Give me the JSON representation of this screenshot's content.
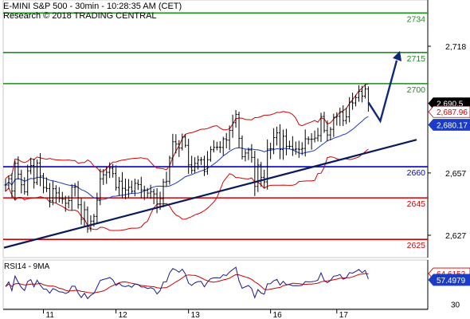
{
  "header": {
    "title": "E-MINI S&P 500 - 30min - 10:28:35 AM (CET)",
    "subtitle": "Research © 2018 TRADING CENTRAL"
  },
  "colors": {
    "candle": "#000000",
    "bollinger": "#d40000",
    "moving_average": "#1a3cc8",
    "trendline": "#0a1a5c",
    "resistance": "#1a8f1a",
    "pivot": "#0000cc",
    "support": "#d40000",
    "projection": "#0d2a7a",
    "rsi_line": "#1a1a8c",
    "rsi_signal": "#cc0000",
    "price_tag_bg": "#000000",
    "ma_tag_bg": "#1a3cc8",
    "bb_tag_bg": "#ffffff"
  },
  "chart_data": [
    {
      "type": "line",
      "title": "E-MINI S&P 500 - 30min",
      "x_tick_labels": [
        "11",
        "12",
        "13",
        "16",
        "17"
      ],
      "y_tick_labels": [
        "2,718",
        "2,657",
        "2,627"
      ],
      "ylim": [
        2609,
        2740
      ],
      "levels": [
        {
          "label": "2734",
          "value": 2734,
          "kind": "resistance"
        },
        {
          "label": "2715",
          "value": 2715,
          "kind": "resistance"
        },
        {
          "label": "2700",
          "value": 2700,
          "kind": "resistance"
        },
        {
          "label": "2660",
          "value": 2660,
          "kind": "pivot"
        },
        {
          "label": "2645",
          "value": 2645,
          "kind": "support"
        },
        {
          "label": "2625",
          "value": 2625,
          "kind": "support"
        }
      ],
      "price_tags": [
        {
          "label": "2,690.5",
          "value": 2690.5,
          "kind": "price"
        },
        {
          "label": "2,687.96",
          "value": 2687.96,
          "kind": "bollinger"
        },
        {
          "label": "2,680.17",
          "value": 2680.17,
          "kind": "moving_average"
        }
      ],
      "trendline": {
        "from": 2621,
        "to": 2673
      },
      "projection": [
        2691,
        2682,
        2715
      ],
      "close": [
        2651.2,
        2654.2,
        2648.3,
        2661.6,
        2656.4,
        2651.3,
        2647.9,
        2658.0,
        2660.6,
        2652.4,
        2661.8,
        2655.5,
        2650.0,
        2649.5,
        2643.6,
        2649.4,
        2647.4,
        2644.7,
        2644.4,
        2642.4,
        2643.7,
        2650.2,
        2650.2,
        2641.7,
        2634.7,
        2639.3,
        2630.1,
        2633.8,
        2636.1,
        2643.8,
        2654.2,
        2656.1,
        2657.3,
        2659.3,
        2656.7,
        2650.0,
        2653.0,
        2649.6,
        2648.8,
        2650.1,
        2648.2,
        2652.0,
        2651.4,
        2648.8,
        2648.8,
        2647.3,
        2648.0,
        2646.9,
        2642.1,
        2644.6,
        2652.6,
        2653.0,
        2664.2,
        2672.0,
        2670.9,
        2669.0,
        2674.3,
        2670.3,
        2660.9,
        2658.2,
        2661.6,
        2663.2,
        2663.4,
        2657.7,
        2663.4,
        2668.2,
        2669.3,
        2669.4,
        2669.3,
        2673.4,
        2672.8,
        2677.5,
        2681.2,
        2685.2,
        2673.7,
        2664.8,
        2666.6,
        2668.1,
        2664.5,
        2650.5,
        2660.8,
        2654.9,
        2652.7,
        2668.5,
        2668.7,
        2674.0,
        2676.3,
        2668.3,
        2674.7,
        2669.8,
        2669.8,
        2668.4,
        2668.5,
        2668.4,
        2668.8,
        2673.4,
        2673.2,
        2673.3,
        2673.8,
        2675.0,
        2684.2,
        2677.4,
        2675.3,
        2678.0,
        2683.8,
        2684.3,
        2686.2,
        2682.2,
        2684.0,
        2691.1,
        2690.7,
        2693.3,
        2696.3,
        2694.0,
        2697.4,
        2690.5
      ],
      "rsi": {
        "title": "RSI14 - 9MA",
        "ylim": [
          25,
          80
        ],
        "y_tick_labels": [
          "30"
        ],
        "value_tags": [
          {
            "label": "64.6152",
            "value": 64.6152,
            "kind": "signal"
          },
          {
            "label": "57.4979",
            "value": 57.4979,
            "kind": "rsi"
          }
        ]
      }
    }
  ]
}
